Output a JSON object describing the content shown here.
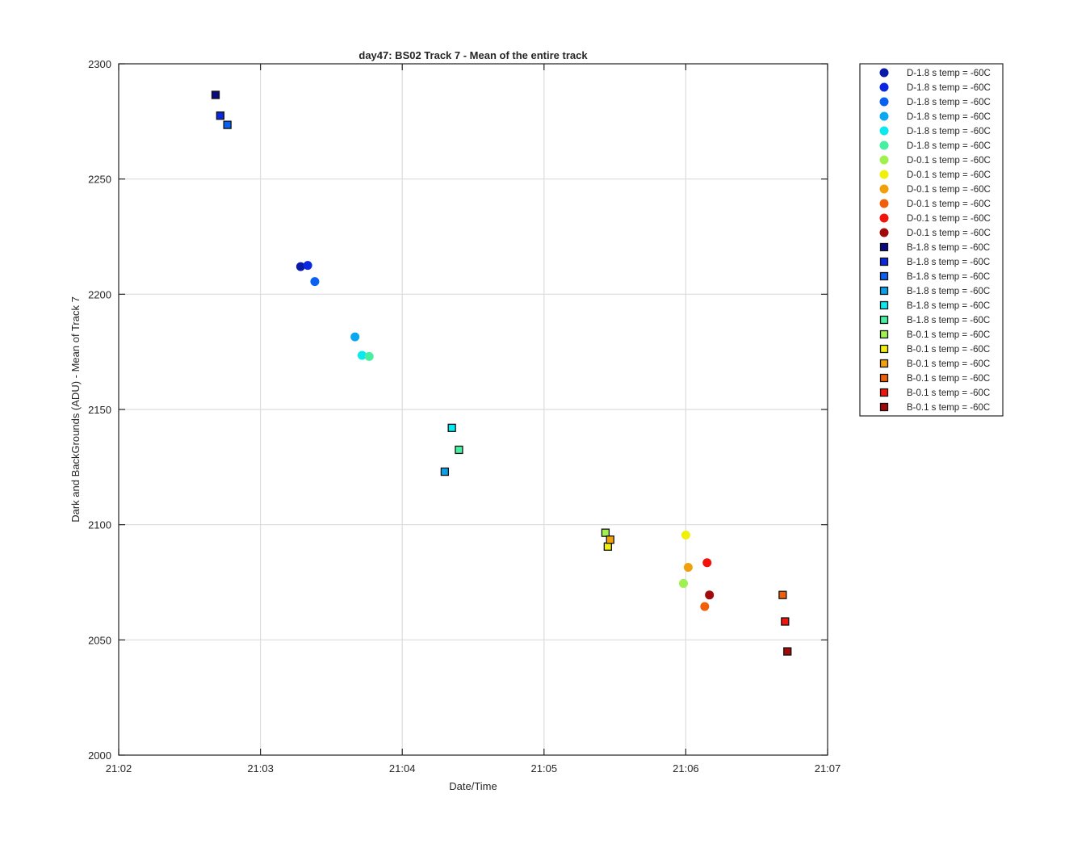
{
  "chart_data": {
    "type": "scatter",
    "title": "day47: BS02  Track 7 - Mean of the entire track",
    "xlabel": "Date/Time",
    "ylabel": "Dark and BackGrounds (ADU) - Mean of Track 7",
    "x_range": [
      "21:02",
      "21:07"
    ],
    "x_ticks": [
      "21:02",
      "21:03",
      "21:04",
      "21:05",
      "21:06",
      "21:07"
    ],
    "ylim": [
      2000,
      2300
    ],
    "y_ticks": [
      "2000",
      "2050",
      "2100",
      "2150",
      "2200",
      "2250",
      "2300"
    ],
    "grid": true,
    "legend_position": "outside-right",
    "series": [
      {
        "name": "D-1.8 s temp = -60C",
        "marker": "circle",
        "color": "#0a1aa8",
        "points": [
          {
            "x": "21:03:17",
            "y": 2212
          }
        ]
      },
      {
        "name": "D-1.8 s temp = -60C",
        "marker": "circle",
        "color": "#0a28e0",
        "points": [
          {
            "x": "21:03:20",
            "y": 2212.5
          }
        ]
      },
      {
        "name": "D-1.8 s temp = -60C",
        "marker": "circle",
        "color": "#0a60f0",
        "points": [
          {
            "x": "21:03:23",
            "y": 2205.5
          }
        ]
      },
      {
        "name": "D-1.8 s temp = -60C",
        "marker": "circle",
        "color": "#0aa8f0",
        "points": [
          {
            "x": "21:03:40",
            "y": 2181.5
          }
        ]
      },
      {
        "name": "D-1.8 s temp = -60C",
        "marker": "circle",
        "color": "#0ae8f0",
        "points": [
          {
            "x": "21:03:43",
            "y": 2173.5
          }
        ]
      },
      {
        "name": "D-1.8 s temp = -60C",
        "marker": "circle",
        "color": "#46f0a0",
        "points": [
          {
            "x": "21:03:46",
            "y": 2173
          }
        ]
      },
      {
        "name": "D-0.1 s temp = -60C",
        "marker": "circle",
        "color": "#a0f050",
        "points": [
          {
            "x": "21:05:59",
            "y": 2074.5
          }
        ]
      },
      {
        "name": "D-0.1 s temp = -60C",
        "marker": "circle",
        "color": "#f0f00a",
        "points": [
          {
            "x": "21:06:00",
            "y": 2095.5
          }
        ]
      },
      {
        "name": "D-0.1 s temp = -60C",
        "marker": "circle",
        "color": "#f0a00a",
        "points": [
          {
            "x": "21:06:01",
            "y": 2081.5
          }
        ]
      },
      {
        "name": "D-0.1 s temp = -60C",
        "marker": "circle",
        "color": "#f0600a",
        "points": [
          {
            "x": "21:06:08",
            "y": 2064.5
          }
        ]
      },
      {
        "name": "D-0.1 s temp = -60C",
        "marker": "circle",
        "color": "#f0140a",
        "points": [
          {
            "x": "21:06:09",
            "y": 2083.5
          }
        ]
      },
      {
        "name": "D-0.1 s temp = -60C",
        "marker": "circle",
        "color": "#a00a0a",
        "points": [
          {
            "x": "21:06:10",
            "y": 2069.5
          }
        ]
      },
      {
        "name": "B-1.8 s temp = -60C",
        "marker": "square",
        "color": "#0a0a80",
        "points": [
          {
            "x": "21:02:41",
            "y": 2286.5
          }
        ]
      },
      {
        "name": "B-1.8 s temp = -60C",
        "marker": "square",
        "color": "#0a28e0",
        "points": [
          {
            "x": "21:02:43",
            "y": 2277.5
          }
        ]
      },
      {
        "name": "B-1.8 s temp = -60C",
        "marker": "square",
        "color": "#0a60f0",
        "points": [
          {
            "x": "21:02:46",
            "y": 2273.5
          }
        ]
      },
      {
        "name": "B-1.8 s temp = -60C",
        "marker": "square",
        "color": "#0aa0e8",
        "points": [
          {
            "x": "21:04:18",
            "y": 2123
          }
        ]
      },
      {
        "name": "B-1.8 s temp = -60C",
        "marker": "square",
        "color": "#0ae8f0",
        "points": [
          {
            "x": "21:04:21",
            "y": 2142
          }
        ]
      },
      {
        "name": "B-1.8 s temp = -60C",
        "marker": "square",
        "color": "#46f0a0",
        "points": [
          {
            "x": "21:04:24",
            "y": 2132.5
          }
        ]
      },
      {
        "name": "B-0.1 s temp = -60C",
        "marker": "square",
        "color": "#a0f050",
        "points": [
          {
            "x": "21:05:26",
            "y": 2096.5
          }
        ]
      },
      {
        "name": "B-0.1 s temp = -60C",
        "marker": "square",
        "color": "#f0f00a",
        "points": [
          {
            "x": "21:05:27",
            "y": 2090.5
          }
        ]
      },
      {
        "name": "B-0.1 s temp = -60C",
        "marker": "square",
        "color": "#f0a00a",
        "points": [
          {
            "x": "21:05:28",
            "y": 2093.5
          }
        ]
      },
      {
        "name": "B-0.1 s temp = -60C",
        "marker": "square",
        "color": "#f0600a",
        "points": [
          {
            "x": "21:06:41",
            "y": 2069.5
          }
        ]
      },
      {
        "name": "B-0.1 s temp = -60C",
        "marker": "square",
        "color": "#f0140a",
        "points": [
          {
            "x": "21:06:42",
            "y": 2058
          }
        ]
      },
      {
        "name": "B-0.1 s temp = -60C",
        "marker": "square",
        "color": "#a00a0a",
        "points": [
          {
            "x": "21:06:43",
            "y": 2045
          }
        ]
      }
    ]
  }
}
